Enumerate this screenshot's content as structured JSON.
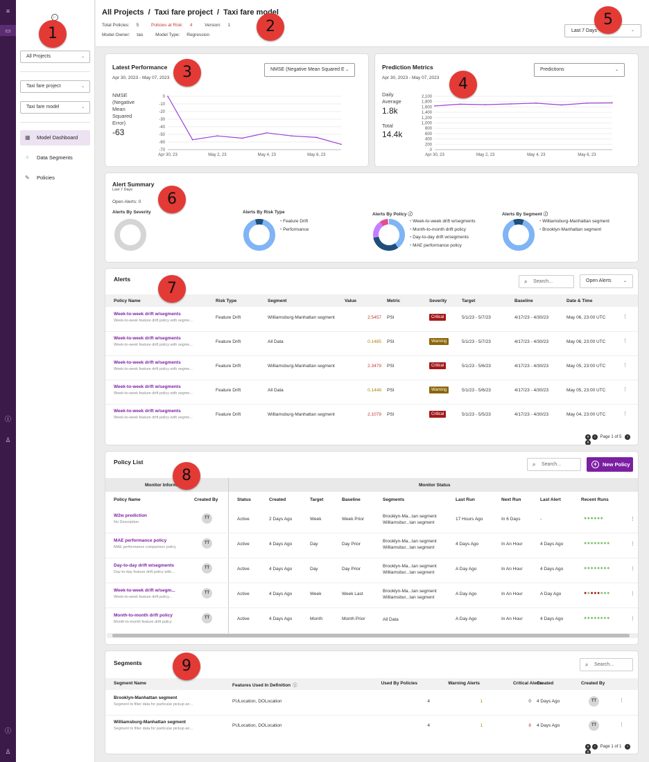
{
  "rail": {
    "icons": [
      "menu-icon",
      "folder-icon",
      "help-icon",
      "user-icon",
      "help-icon",
      "user-icon"
    ]
  },
  "sidebar": {
    "back_glyph": "←",
    "project_filter": "All Projects",
    "project": "Taxi fare project",
    "model": "Taxi fare model",
    "nav": [
      {
        "label": "Model Dashboard",
        "icon": "grid-icon"
      },
      {
        "label": "Data Segments",
        "icon": "segments-icon"
      },
      {
        "label": "Policies",
        "icon": "policy-icon"
      }
    ]
  },
  "header": {
    "crumb1": "All Projects",
    "crumb2": "Taxi fare project",
    "crumb3": "Taxi fare model",
    "sep": "/",
    "total_policies_label": "Total Policies:",
    "total_policies": "5",
    "at_risk_label": "Policies at Risk:",
    "at_risk": "4",
    "version_label": "Version:",
    "version": "1",
    "owner_label": "Model Owner:",
    "owner": "tao",
    "type_label": "Model Type:",
    "type": "Regression",
    "date_range": "Last 7 Days"
  },
  "latest_performance": {
    "title": "Latest Performance",
    "range": "Apr 30, 2023 - May 07, 2023",
    "dropdown": "NMSE (Negative Mean Squared E",
    "metric_label_lines": [
      "NMSE",
      "(Negative",
      "Mean",
      "Squared",
      "Error)"
    ],
    "metric_value": "-63",
    "x_ticks": [
      "Apr 30, 23",
      "May 2, 23",
      "May 4, 23",
      "May 6, 23"
    ],
    "y_ticks": [
      "0",
      "-10",
      "-20",
      "-30",
      "-40",
      "-50",
      "-60",
      "-70"
    ],
    "values": [
      0,
      -57,
      -52,
      -55,
      -48,
      -52,
      -54,
      -63
    ],
    "ylim": [
      -70,
      0
    ]
  },
  "prediction_metrics": {
    "title": "Prediction Metrics",
    "range": "Apr 30, 2023 - May 07, 2023",
    "dropdown": "Predictions",
    "daily_label_lines": [
      "Daily",
      "Average"
    ],
    "daily_value": "1.8k",
    "total_label": "Total",
    "total_value": "14.4k",
    "x_ticks": [
      "Apr 30, 23",
      "May 2, 23",
      "May 4, 23",
      "May 6, 23"
    ],
    "y_ticks": [
      "2,100",
      "1,800",
      "1,600",
      "1,400",
      "1,200",
      "1,000",
      "800",
      "600",
      "400",
      "200",
      "0"
    ],
    "values": [
      1720,
      1790,
      1770,
      1800,
      1830,
      1760,
      1830,
      1840
    ],
    "ylim": [
      0,
      2100
    ]
  },
  "alert_summary": {
    "title": "Alert Summary",
    "range": "Last 7 Days",
    "open_label": "Open Alerts:",
    "open_value": "0",
    "by_severity": "Alerts By Severity",
    "by_risk": "Alerts By Risk Type",
    "risk_legend": [
      "Feature Drift",
      "Performance"
    ],
    "by_policy": "Alerts By Policy",
    "policy_legend": [
      "Week-to-week drift w/segments",
      "Month-to-month drift policy",
      "Day-to-day drift w/segments",
      "MAE performance policy"
    ],
    "by_segment": "Alerts By Segment",
    "segment_legend": [
      "Williamsburg-Manhattan segment",
      "Brooklyn-Manhattan segment"
    ]
  },
  "alerts": {
    "title": "Alerts",
    "search_placeholder": "Search...",
    "filter": "Open Alerts",
    "headers": [
      "Policy Name",
      "Risk Type",
      "Segment",
      "Value",
      "Metric",
      "Severity",
      "Target",
      "Baseline",
      "Date & Time"
    ],
    "rows": [
      {
        "name": "Week-to-week drift w/segments",
        "desc": "Week-to-week feature drift policy with segme...",
        "risk": "Feature Drift",
        "segment": "Williamsburg-Manhattan segment",
        "value": "2.5457",
        "metric": "PSI",
        "severity": "Critical",
        "target": "5/1/23 - 5/7/23",
        "baseline": "4/17/23 - 4/30/23",
        "date": "May 06, 23:00 UTC"
      },
      {
        "name": "Week-to-week drift w/segments",
        "desc": "Week-to-week feature drift policy with segme...",
        "risk": "Feature Drift",
        "segment": "All Data",
        "value": "0.1485",
        "metric": "PSI",
        "severity": "Warning",
        "target": "5/1/23 - 5/7/23",
        "baseline": "4/17/23 - 4/30/23",
        "date": "May 06, 23:00 UTC"
      },
      {
        "name": "Week-to-week drift w/segments",
        "desc": "Week-to-week feature drift policy with segme...",
        "risk": "Feature Drift",
        "segment": "Williamsburg-Manhattan segment",
        "value": "2.3479",
        "metric": "PSI",
        "severity": "Critical",
        "target": "5/1/23 - 5/6/23",
        "baseline": "4/17/23 - 4/30/23",
        "date": "May 05, 23:00 UTC"
      },
      {
        "name": "Week-to-week drift w/segments",
        "desc": "Week-to-week feature drift policy with segme...",
        "risk": "Feature Drift",
        "segment": "All Data",
        "value": "0.1448",
        "metric": "PSI",
        "severity": "Warning",
        "target": "5/1/23 - 5/6/23",
        "baseline": "4/17/23 - 4/30/23",
        "date": "May 05, 23:00 UTC"
      },
      {
        "name": "Week-to-week drift w/segments",
        "desc": "Week-to-week feature drift policy with segme...",
        "risk": "Feature Drift",
        "segment": "Williamsburg-Manhattan segment",
        "value": "2.1079",
        "metric": "PSI",
        "severity": "Critical",
        "target": "5/1/23 - 5/5/23",
        "baseline": "4/17/23 - 4/30/23",
        "date": "May 04, 23:00 UTC"
      }
    ],
    "pager": "Page 1 of 5",
    "pager_page": "1",
    "pager_total": "5"
  },
  "policy_list": {
    "title": "Policy List",
    "search_placeholder": "Search...",
    "new_button": "New Policy",
    "group_info": "Monitor Information",
    "group_status": "Monitor Status",
    "headers": [
      "Policy Name",
      "Created By",
      "Status",
      "Created",
      "Target",
      "Baseline",
      "Segments",
      "Last Run",
      "Next Run",
      "Last Alert",
      "Recent Runs"
    ],
    "rows": [
      {
        "name": "W2w prediction",
        "desc": "No Description",
        "by": "TT",
        "status": "Active",
        "created": "2 Days Ago",
        "target": "Week",
        "baseline": "Week Prior",
        "seg1": "Brooklyn-Ma...tan segment",
        "seg2": "Williamsbur...tan segment",
        "last_run": "17 Hours Ago",
        "next_run": "In 6 Days",
        "last_alert": "-",
        "runs": [
          "g",
          "g",
          "g",
          "g",
          "g",
          "g"
        ]
      },
      {
        "name": "MAE performance policy",
        "desc": "MAE performance comparison policy",
        "by": "TT",
        "status": "Active",
        "created": "4 Days Ago",
        "target": "Day",
        "baseline": "Day Prior",
        "seg1": "Brooklyn-Ma...tan segment",
        "seg2": "Williamsbur...tan segment",
        "last_run": "4 Days Ago",
        "next_run": "In An Hour",
        "last_alert": "4 Days Ago",
        "runs": [
          "g",
          "g",
          "g",
          "g",
          "g",
          "g",
          "g",
          "g"
        ]
      },
      {
        "name": "Day-to-day drift w/segments",
        "desc": "Day-to-day feature drift policy with...",
        "by": "TT",
        "status": "Active",
        "created": "4 Days Ago",
        "target": "Day",
        "baseline": "Day Prior",
        "seg1": "Brooklyn-Ma...tan segment",
        "seg2": "Williamsbur...tan segment",
        "last_run": "A Day Ago",
        "next_run": "In An Hour",
        "last_alert": "4 Days Ago",
        "runs": [
          "g",
          "g",
          "g",
          "g",
          "g",
          "g",
          "g",
          "g"
        ]
      },
      {
        "name": "Week-to-week drift w/segm...",
        "desc": "Week-to-week feature drift policy...",
        "by": "TT",
        "status": "Active",
        "created": "4 Days Ago",
        "target": "Week",
        "baseline": "Week Last",
        "seg1": "Brooklyn-Ma...tan segment",
        "seg2": "Williamsbur...tan segment",
        "last_run": "A Day Ago",
        "next_run": "In An Hour",
        "last_alert": "A Day Ago",
        "runs": [
          "r",
          "g",
          "r",
          "r",
          "r",
          "g",
          "g",
          "g"
        ]
      },
      {
        "name": "Month-to-month drift policy",
        "desc": "Month-to-month feature drift policy",
        "by": "TT",
        "status": "Active",
        "created": "4 Days Ago",
        "target": "Month",
        "baseline": "Month Prior",
        "seg1": "All Data",
        "seg2": "",
        "last_run": "A Day Ago",
        "next_run": "In An Hour",
        "last_alert": "4 Days Ago",
        "runs": [
          "g",
          "g",
          "g",
          "g",
          "g",
          "g",
          "g",
          "g"
        ]
      }
    ]
  },
  "segments": {
    "title": "Segments",
    "search_placeholder": "Search...",
    "headers": [
      "Segment Name",
      "Features Used In Definition",
      "Used By Policies",
      "Warning Alerts",
      "Critical Alerts",
      "Created",
      "Created By"
    ],
    "rows": [
      {
        "name": "Brooklyn-Manhattan segment",
        "desc": "Segment to filter data for particular pickup an...",
        "features": "PULocation, DOLocation",
        "used": "4",
        "warning": "1",
        "critical": "0",
        "created": "4 Days Ago",
        "by": "TT"
      },
      {
        "name": "Williamsburg-Manhattan segment",
        "desc": "Segment to filter data for particular pickup an...",
        "features": "PULocation, DOLocation",
        "used": "4",
        "warning": "1",
        "critical": "8",
        "created": "4 Days Ago",
        "by": "TT"
      }
    ],
    "pager": "Page 1 of 1",
    "pager_page": "1",
    "pager_total": "1"
  },
  "callouts": [
    "1",
    "2",
    "3",
    "4",
    "5",
    "6",
    "7",
    "8",
    "9"
  ],
  "colors": {
    "accent": "#7b1fa2",
    "rail": "#3b1a4a",
    "critical": "#a31a1a",
    "warning": "#8b6508",
    "line": "#9b3fd6",
    "donut_blue": "#7fb4f5",
    "donut_dark": "#1f4e79",
    "callout": "#e33a36"
  }
}
